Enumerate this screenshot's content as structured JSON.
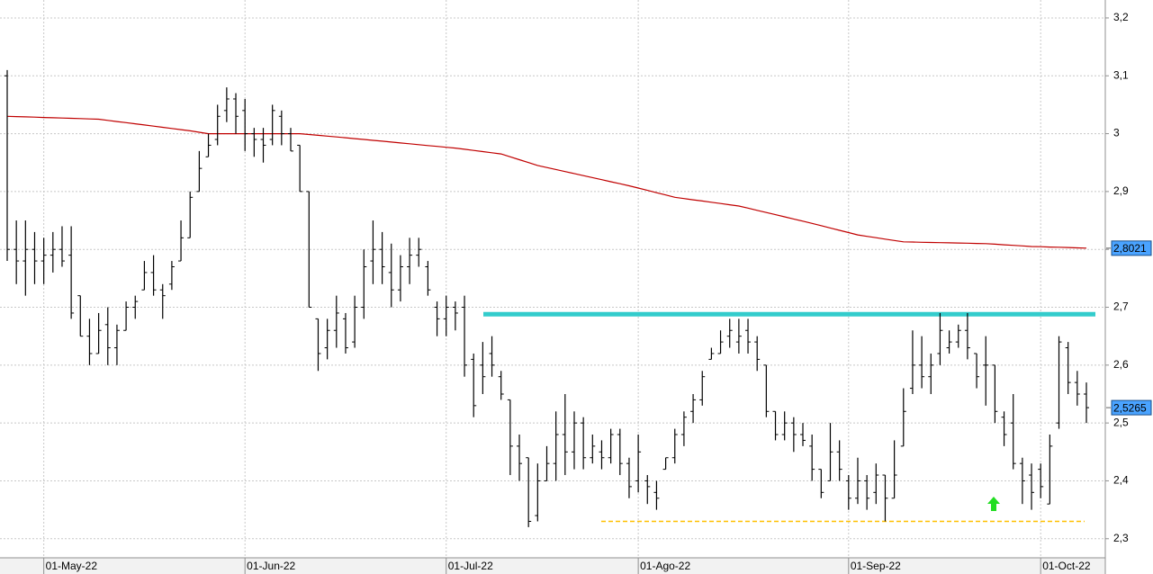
{
  "chart_data": {
    "type": "ohlc",
    "categories": [
      null,
      null,
      null,
      null,
      "01-May-22",
      null,
      null,
      null,
      null,
      null,
      null,
      null,
      null,
      null,
      null,
      null,
      null,
      null,
      null,
      null,
      null,
      null,
      null,
      null,
      null,
      null,
      "01-Jun-22",
      null,
      null,
      null,
      null,
      null,
      null,
      null,
      null,
      null,
      null,
      null,
      null,
      null,
      null,
      null,
      null,
      null,
      null,
      null,
      null,
      null,
      "01-Jul-22",
      null,
      null,
      null,
      null,
      null,
      null,
      null,
      null,
      null,
      null,
      null,
      null,
      null,
      null,
      null,
      null,
      null,
      null,
      null,
      null,
      "01-Ago-22",
      null,
      null,
      null,
      null,
      null,
      null,
      null,
      null,
      null,
      null,
      null,
      null,
      null,
      null,
      null,
      null,
      null,
      null,
      null,
      null,
      null,
      null,
      "01-Sep-22",
      null,
      null,
      null,
      null,
      null,
      null,
      null,
      null,
      null,
      null,
      null,
      null,
      null,
      null,
      null,
      null,
      null,
      null,
      null,
      null,
      "01-Oct-22",
      null,
      null,
      null,
      null,
      null
    ],
    "open": [
      3.1,
      2.8,
      2.78,
      2.8,
      2.78,
      2.79,
      2.8,
      2.79,
      2.72,
      2.65,
      2.62,
      2.67,
      2.63,
      2.66,
      2.7,
      2.73,
      2.76,
      2.73,
      2.74,
      2.78,
      2.82,
      2.9,
      2.96,
      2.99,
      3.04,
      3.06,
      3.04,
      3.0,
      2.99,
      2.99,
      3.03,
      3.0,
      2.98,
      2.9,
      2.68,
      2.63,
      2.66,
      2.68,
      2.64,
      2.7,
      2.78,
      2.8,
      2.76,
      2.73,
      2.77,
      2.79,
      2.77,
      2.7,
      2.68,
      2.7,
      2.7,
      2.61,
      2.6,
      2.62,
      2.58,
      2.54,
      2.46,
      2.44,
      2.34,
      2.4,
      2.43,
      2.48,
      2.45,
      2.5,
      2.44,
      2.45,
      2.44,
      2.48,
      2.43,
      2.4,
      2.4,
      2.38,
      2.42,
      2.44,
      2.48,
      2.52,
      2.54,
      2.61,
      2.62,
      2.65,
      2.64,
      2.66,
      2.64,
      2.6,
      2.52,
      2.48,
      2.5,
      2.48,
      2.46,
      2.42,
      2.4,
      2.45,
      2.4,
      2.37,
      2.4,
      2.38,
      2.41,
      2.37,
      2.46,
      2.56,
      2.6,
      2.58,
      2.62,
      2.63,
      2.64,
      2.66,
      2.62,
      2.6,
      2.6,
      2.51,
      2.5,
      2.43,
      2.41,
      2.42,
      2.36,
      2.5,
      2.63,
      2.57,
      2.55
    ],
    "high": [
      3.11,
      2.85,
      2.85,
      2.83,
      2.82,
      2.83,
      2.84,
      2.84,
      2.72,
      2.68,
      2.69,
      2.7,
      2.67,
      2.71,
      2.72,
      2.78,
      2.79,
      2.74,
      2.78,
      2.85,
      2.9,
      2.97,
      3.0,
      3.05,
      3.08,
      3.07,
      3.06,
      3.01,
      3.01,
      3.05,
      3.04,
      3.01,
      2.98,
      2.9,
      2.68,
      2.68,
      2.72,
      2.69,
      2.72,
      2.8,
      2.85,
      2.83,
      2.81,
      2.79,
      2.82,
      2.82,
      2.78,
      2.71,
      2.72,
      2.71,
      2.72,
      2.62,
      2.64,
      2.65,
      2.59,
      2.54,
      2.48,
      2.44,
      2.43,
      2.46,
      2.52,
      2.55,
      2.52,
      2.51,
      2.48,
      2.47,
      2.49,
      2.49,
      2.44,
      2.48,
      2.41,
      2.4,
      2.44,
      2.49,
      2.52,
      2.55,
      2.59,
      2.63,
      2.66,
      2.68,
      2.68,
      2.68,
      2.65,
      2.6,
      2.52,
      2.52,
      2.51,
      2.5,
      2.48,
      2.42,
      2.5,
      2.47,
      2.41,
      2.44,
      2.41,
      2.43,
      2.41,
      2.47,
      2.56,
      2.66,
      2.65,
      2.62,
      2.69,
      2.66,
      2.67,
      2.69,
      2.62,
      2.65,
      2.6,
      2.52,
      2.55,
      2.44,
      2.43,
      2.43,
      2.48,
      2.65,
      2.64,
      2.59,
      2.57
    ],
    "low": [
      2.78,
      2.74,
      2.72,
      2.74,
      2.74,
      2.76,
      2.77,
      2.68,
      2.65,
      2.6,
      2.62,
      2.6,
      2.6,
      2.66,
      2.68,
      2.73,
      2.72,
      2.68,
      2.73,
      2.78,
      2.82,
      2.9,
      2.96,
      2.98,
      3.02,
      3.0,
      2.97,
      2.96,
      2.95,
      2.98,
      2.98,
      2.97,
      2.9,
      2.7,
      2.59,
      2.61,
      2.63,
      2.62,
      2.63,
      2.68,
      2.74,
      2.74,
      2.7,
      2.71,
      2.74,
      2.77,
      2.72,
      2.65,
      2.65,
      2.66,
      2.58,
      2.51,
      2.55,
      2.58,
      2.54,
      2.41,
      2.4,
      2.32,
      2.33,
      2.4,
      2.4,
      2.41,
      2.42,
      2.42,
      2.43,
      2.42,
      2.43,
      2.41,
      2.37,
      2.38,
      2.36,
      2.35,
      2.42,
      2.43,
      2.46,
      2.5,
      2.53,
      2.61,
      2.62,
      2.63,
      2.62,
      2.62,
      2.59,
      2.51,
      2.47,
      2.47,
      2.45,
      2.46,
      2.4,
      2.37,
      2.4,
      2.4,
      2.35,
      2.36,
      2.35,
      2.36,
      2.33,
      2.37,
      2.46,
      2.55,
      2.56,
      2.55,
      2.6,
      2.62,
      2.63,
      2.61,
      2.56,
      2.53,
      2.5,
      2.46,
      2.42,
      2.36,
      2.35,
      2.37,
      2.36,
      2.49,
      2.55,
      2.53,
      2.5
    ],
    "close": [
      2.8,
      2.78,
      2.8,
      2.78,
      2.79,
      2.8,
      2.78,
      2.69,
      2.65,
      2.62,
      2.66,
      2.63,
      2.66,
      2.7,
      2.71,
      2.76,
      2.73,
      2.72,
      2.77,
      2.82,
      2.89,
      2.94,
      2.98,
      3.03,
      3.06,
      3.03,
      3.0,
      2.99,
      2.98,
      3.04,
      3.0,
      2.97,
      2.9,
      2.7,
      2.62,
      2.66,
      2.69,
      2.63,
      2.7,
      2.77,
      2.8,
      2.77,
      2.73,
      2.77,
      2.79,
      2.8,
      2.73,
      2.68,
      2.7,
      2.69,
      2.6,
      2.53,
      2.58,
      2.6,
      2.55,
      2.46,
      2.43,
      2.33,
      2.4,
      2.43,
      2.48,
      2.45,
      2.5,
      2.44,
      2.46,
      2.44,
      2.48,
      2.43,
      2.39,
      2.45,
      2.39,
      2.37,
      2.44,
      2.48,
      2.51,
      2.54,
      2.58,
      2.62,
      2.64,
      2.66,
      2.65,
      2.64,
      2.61,
      2.52,
      2.48,
      2.5,
      2.48,
      2.47,
      2.42,
      2.38,
      2.45,
      2.42,
      2.37,
      2.4,
      2.37,
      2.41,
      2.37,
      2.41,
      2.52,
      2.6,
      2.58,
      2.6,
      2.66,
      2.64,
      2.66,
      2.63,
      2.58,
      2.6,
      2.52,
      2.48,
      2.43,
      2.4,
      2.38,
      2.39,
      2.46,
      2.64,
      2.57,
      2.55,
      2.5265
    ],
    "bar_color": "#000000",
    "moving_average": {
      "color": "#c00000",
      "values": [
        3.03,
        3.0295,
        3.029,
        3.0285,
        3.028,
        3.0275,
        3.027,
        3.0265,
        3.026,
        3.0255,
        3.025,
        3.023,
        3.021,
        3.019,
        3.017,
        3.015,
        3.013,
        3.011,
        3.009,
        3.007,
        3.005,
        3.0025,
        3.0,
        3.0,
        3.0,
        3.0,
        3.0,
        3.0,
        3.0,
        3.0,
        3.0,
        3.0,
        3.0,
        2.9986,
        2.9971,
        2.9957,
        2.9943,
        2.9929,
        2.9914,
        2.99,
        2.9885,
        2.987,
        2.9855,
        2.984,
        2.9825,
        2.981,
        2.9795,
        2.978,
        2.9765,
        2.975,
        2.973,
        2.971,
        2.969,
        2.967,
        2.965,
        2.96,
        2.955,
        2.95,
        2.945,
        2.9415,
        2.938,
        2.9345,
        2.931,
        2.9275,
        2.924,
        2.9205,
        2.917,
        2.9135,
        2.91,
        2.906,
        2.902,
        2.898,
        2.894,
        2.89,
        2.8879,
        2.8857,
        2.8836,
        2.8814,
        2.8793,
        2.8771,
        2.875,
        2.8713,
        2.8675,
        2.8638,
        2.86,
        2.8563,
        2.8525,
        2.8488,
        2.845,
        2.841,
        2.837,
        2.833,
        2.829,
        2.825,
        2.8226,
        2.8202,
        2.8178,
        2.8154,
        2.813,
        2.8127,
        2.8123,
        2.812,
        2.8117,
        2.8113,
        2.811,
        2.8107,
        2.8103,
        2.81,
        2.809,
        2.808,
        2.807,
        2.806,
        2.805,
        2.8046,
        2.8041,
        2.8037,
        2.8032,
        2.8027,
        2.8021
      ]
    },
    "hlines": [
      {
        "value": 2.688,
        "color": "#33cccc",
        "style": "solid"
      },
      {
        "value": 2.33,
        "color": "#ffc000",
        "style": "dashed"
      }
    ],
    "last_labels": [
      {
        "value": 2.8021,
        "label": "2,8021"
      },
      {
        "value": 2.5265,
        "label": "2,5265"
      }
    ],
    "ylim": [
      2.267,
      3.231
    ],
    "yticks": [
      {
        "value": 2.3,
        "label": "2,3"
      },
      {
        "value": 2.4,
        "label": "2,4"
      },
      {
        "value": 2.5,
        "label": "2,5"
      },
      {
        "value": 2.6,
        "label": "2,6"
      },
      {
        "value": 2.7,
        "label": "2,7"
      },
      {
        "value": 2.8,
        "label": "2,8"
      },
      {
        "value": 2.9,
        "label": "2,9"
      },
      3,
      {
        "value": 3.1,
        "label": "3,1"
      },
      {
        "value": 3.2,
        "label": "3,2"
      }
    ],
    "grid": true
  }
}
